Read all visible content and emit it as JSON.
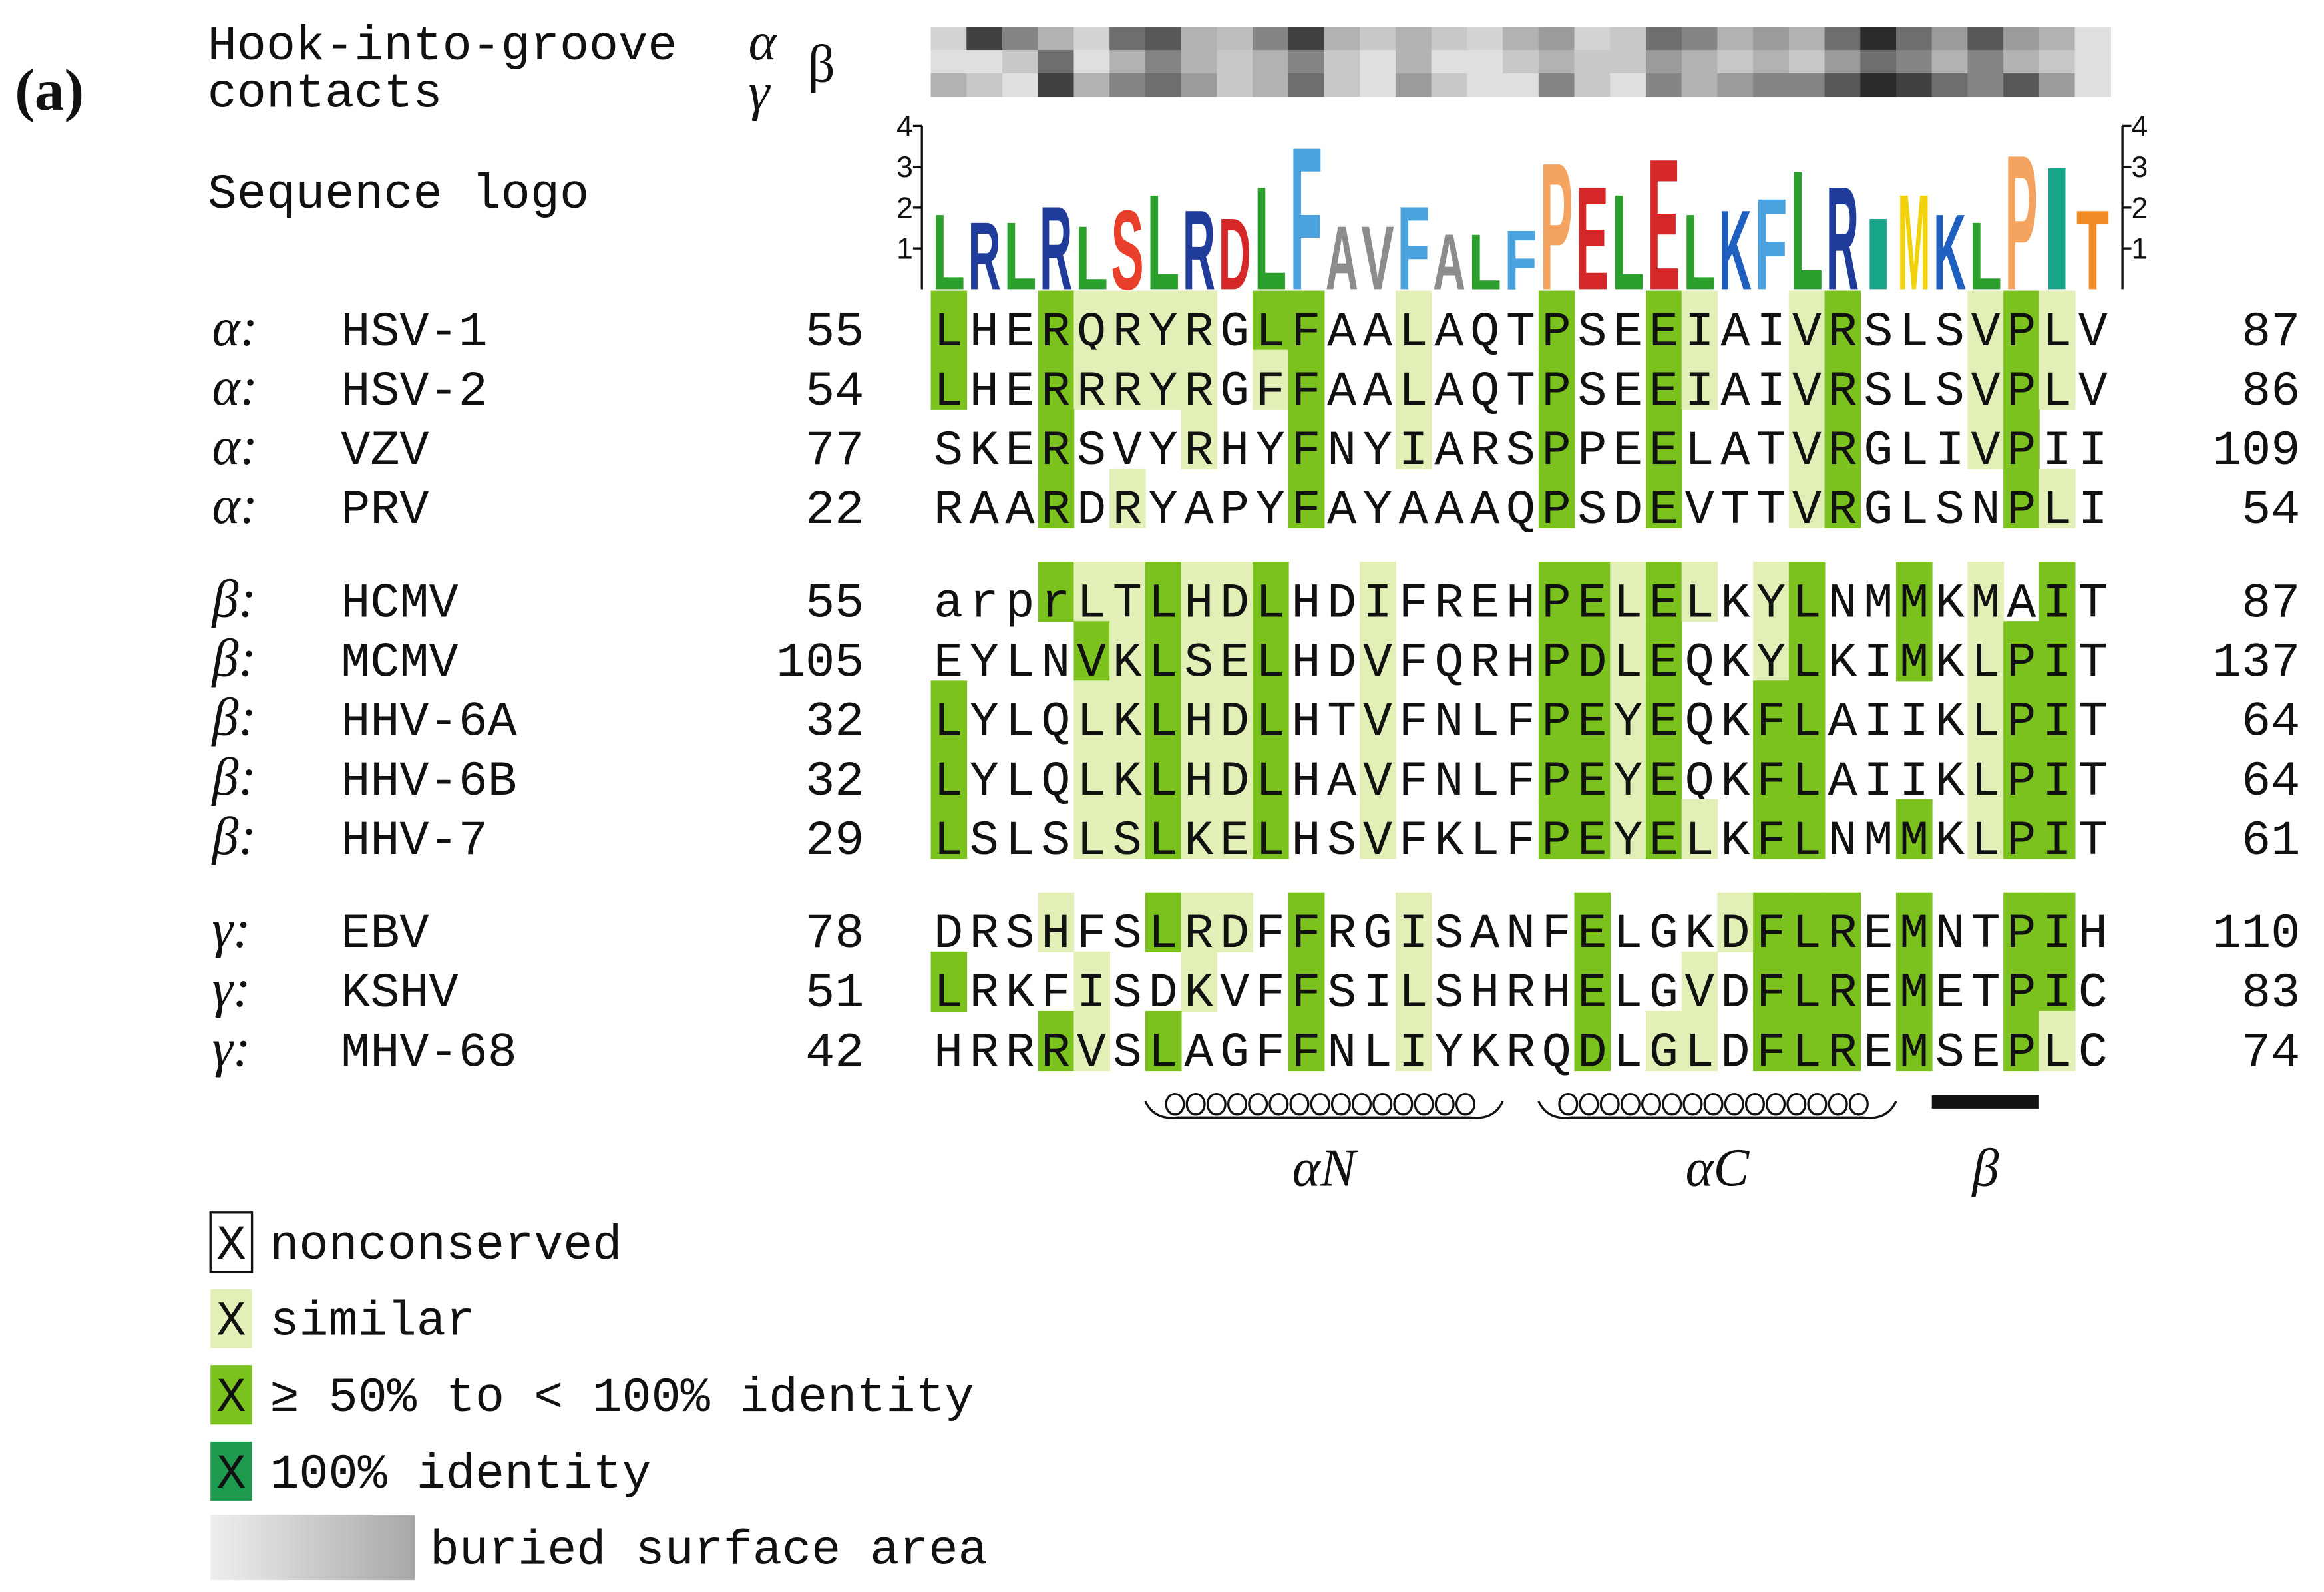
{
  "panel_label": "(a)",
  "contacts": {
    "label": [
      "Hook-into-groove",
      "contacts"
    ],
    "rows": [
      {
        "name": "α",
        "values": [
          0.15,
          0.8,
          0.5,
          0.3,
          0.15,
          0.6,
          0.7,
          0.3,
          0.25,
          0.5,
          0.8,
          0.3,
          0.2,
          0.3,
          0.2,
          0.15,
          0.3,
          0.4,
          0.15,
          0.2,
          0.6,
          0.5,
          0.3,
          0.4,
          0.3,
          0.6,
          0.9,
          0.6,
          0.4,
          0.7,
          0.4,
          0.3,
          0.1
        ]
      },
      {
        "name": "β",
        "values": [
          0.1,
          0.1,
          0.2,
          0.6,
          0.1,
          0.3,
          0.5,
          0.3,
          0.2,
          0.3,
          0.5,
          0.2,
          0.1,
          0.3,
          0.1,
          0.1,
          0.2,
          0.3,
          0.2,
          0.2,
          0.4,
          0.3,
          0.2,
          0.3,
          0.2,
          0.4,
          0.6,
          0.5,
          0.3,
          0.5,
          0.3,
          0.2,
          0.1
        ]
      },
      {
        "name": "γ",
        "values": [
          0.3,
          0.2,
          0.1,
          0.8,
          0.3,
          0.5,
          0.6,
          0.4,
          0.2,
          0.3,
          0.6,
          0.2,
          0.1,
          0.4,
          0.2,
          0.1,
          0.1,
          0.5,
          0.2,
          0.1,
          0.5,
          0.3,
          0.4,
          0.5,
          0.5,
          0.7,
          0.9,
          0.8,
          0.6,
          0.5,
          0.7,
          0.4,
          0.1
        ]
      }
    ]
  },
  "logo": {
    "label": "Sequence logo",
    "ylim": [
      0,
      4
    ],
    "yticks": [
      1,
      2,
      3,
      4
    ],
    "letters": [
      "L",
      "R",
      "L",
      "R",
      "L",
      "S",
      "L",
      "R",
      "D",
      "L",
      "F",
      "A",
      "V",
      "F",
      "A",
      "L",
      "F",
      "P",
      "E",
      "L",
      "E",
      "L",
      "K",
      "F",
      "L",
      "R",
      "I",
      "M",
      "K",
      "L",
      "P",
      "I",
      "T"
    ],
    "heights": [
      1.9,
      1.7,
      1.7,
      2.1,
      1.6,
      2.0,
      2.4,
      2.0,
      1.8,
      2.6,
      3.6,
      1.6,
      1.6,
      2.1,
      1.4,
      1.4,
      1.5,
      3.2,
      2.6,
      2.4,
      3.3,
      1.9,
      2.0,
      2.3,
      3.0,
      2.6,
      1.8,
      2.4,
      1.9,
      1.7,
      3.4,
      3.1,
      2.0
    ],
    "colors": {
      "L": "#2ca02c",
      "R": "#1f3c9b",
      "S": "#e8402a",
      "D": "#d62728",
      "F": "#4aa3df",
      "A": "#8c8c8c",
      "V": "#8c8c8c",
      "P": "#f4a460",
      "E": "#d62728",
      "K": "#1f5fbf",
      "I": "#17a589",
      "M": "#f2d20c",
      "T": "#f08a24"
    }
  },
  "alignment": {
    "shading_colors": {
      "s": "#e2f0b8",
      "g": "#7cc21f"
    },
    "groups": [
      {
        "label": "α:",
        "rows": [
          {
            "name": "HSV-1",
            "start": 55,
            "sequence": "LHERQRYRGLFAALAQTPSEEIAIVRSLSVPLV",
            "end": 87,
            "shading": "g..gssss.gg..s...g..gs..sg...sgs."
          },
          {
            "name": "HSV-2",
            "start": 54,
            "sequence": "LHERRRYRGFFAALAQTPSEEIAIVRSLSVPLV",
            "end": 86,
            "shading": "g..gssss.sg..s...g..gs..sg...sgs."
          },
          {
            "name": "VZV",
            "start": 77,
            "sequence": "SKERSVYRHYFNYIARSPPEELATVRGLIVPII",
            "end": 109,
            "shading": "...g...s..g..s...g..g...sg...sg.."
          },
          {
            "name": "PRV",
            "start": 22,
            "sequence": "RAARDRYAPYFAYAAAQPSDEVTTVRGLSNPLI",
            "end": 54,
            "shading": "...g.s....g......g..g...sg....gs."
          }
        ]
      },
      {
        "label": "β:",
        "rows": [
          {
            "name": "HCMV",
            "start": 55,
            "sequence": "arprLTLHDLHDIFREHPELELKYLNMMKMAIT",
            "end": 87,
            "shading": "...gssgssg..s....ggsgs.sg..g.s.g."
          },
          {
            "name": "MCMV",
            "start": 105,
            "sequence": "EYLNVKLSELHDVFQRHPDLEQKYLKIMKLPIT",
            "end": 137,
            "shading": "....gsgssg..s....ggsg..sg..g.sgg."
          },
          {
            "name": "HHV-6A",
            "start": 32,
            "sequence": "LYLQLKLHDLHTVFNLFPEYEQKFLAIIKLPIT",
            "end": 64,
            "shading": "g...ssgssg..s....ggsg..gg....sgg."
          },
          {
            "name": "HHV-6B",
            "start": 32,
            "sequence": "LYLQLKLHDLHAVFNLFPEYEQKFLAIIKLPIT",
            "end": 64,
            "shading": "g...ssgssg..s....ggsg..gg....sgg."
          },
          {
            "name": "HHV-7",
            "start": 29,
            "sequence": "LSLSLSLKELHSVFKLFPEYELKFLNMMKLPIT",
            "end": 61,
            "shading": "g...ssgssg..s....ggsgs.gg..g.sgg."
          }
        ]
      },
      {
        "label": "γ:",
        "rows": [
          {
            "name": "EBV",
            "start": 78,
            "sequence": "DRSHFSLRDFFRGISANFELGKDFLREMNTPIH",
            "end": 110,
            "shading": "...s..gss.g..s....g...sggg.g..gg."
          },
          {
            "name": "KSHV",
            "start": 51,
            "sequence": "LRKFISDKVFFSILSHRHELGVDFLREMETPIC",
            "end": 83,
            "shading": "g...s..s..g..s....g..s.ggg.g..gg."
          },
          {
            "name": "MHV-68",
            "start": 42,
            "sequence": "HRRRVSLAGFFNLIYKRQDLGLDFLREMSEPLC",
            "end": 74,
            "shading": "...gs.g...g..s....g.ss.ggg.g..gs."
          }
        ]
      }
    ]
  },
  "secondary_structure": [
    {
      "kind": "helix",
      "label": "αN",
      "from": 7,
      "to": 16
    },
    {
      "kind": "helix",
      "label": "αC",
      "from": 18,
      "to": 27
    },
    {
      "kind": "strand",
      "label": "β",
      "from": 29,
      "to": 31
    }
  ],
  "legend": [
    {
      "symbol": "X",
      "label": "nonconserved",
      "fill": "#ffffff"
    },
    {
      "symbol": "X",
      "label": "similar",
      "fill": "#e2f0b8"
    },
    {
      "symbol": "X",
      "label": "≥ 50% to < 100% identity",
      "fill": "#7cc21f"
    },
    {
      "symbol": "X",
      "label": "100% identity",
      "fill": "#1e9a4e"
    },
    {
      "label": "buried surface area"
    }
  ]
}
